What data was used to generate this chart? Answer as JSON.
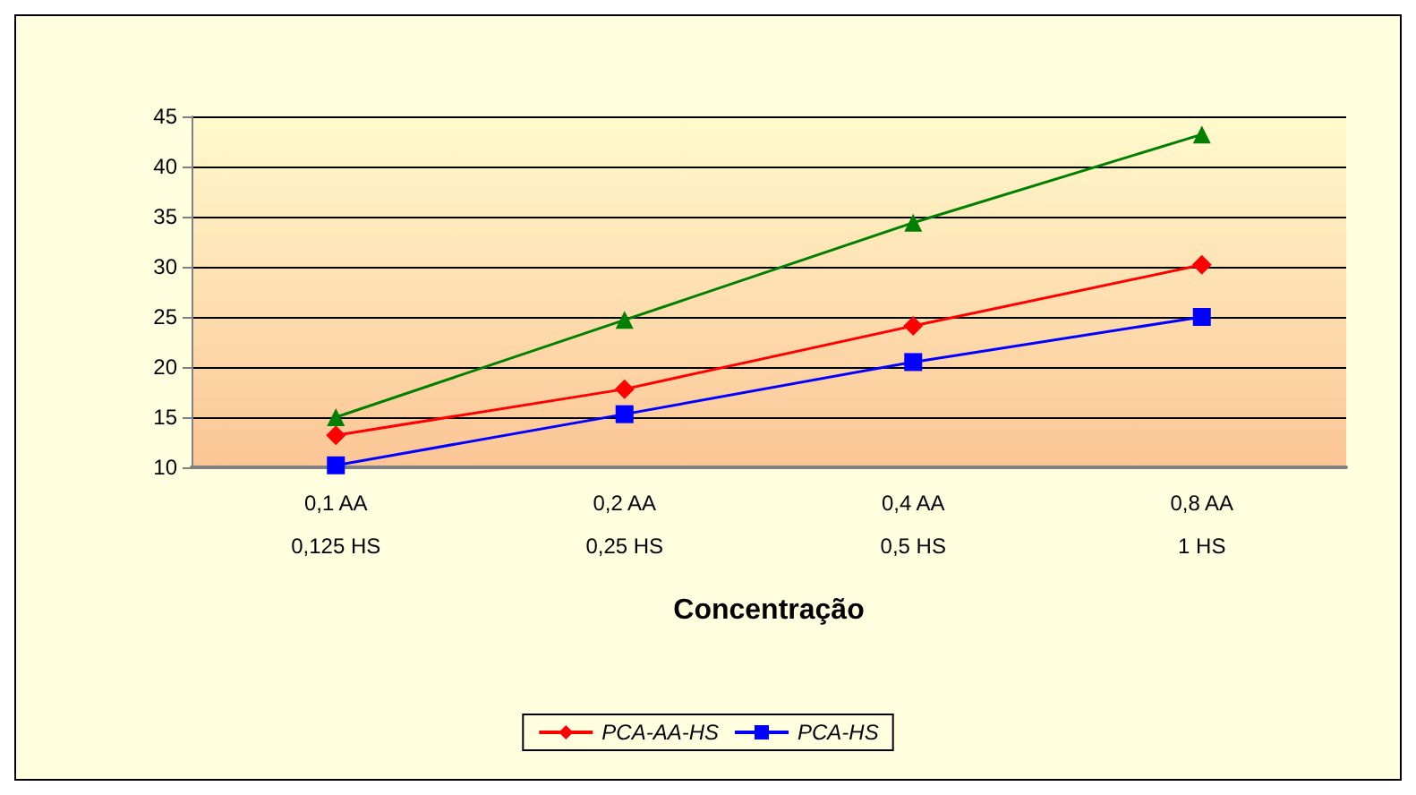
{
  "chart_data": {
    "type": "line",
    "xlabel": "Concentração",
    "categories": [
      "0,1 AA\n\n0,125 HS",
      "0,2 AA\n\n0,25 HS",
      "0,4 AA\n\n0,5 HS",
      "0,8 AA\n\n1 HS"
    ],
    "series": [
      {
        "name": "PCA-AA-HS",
        "color": "#ff0000",
        "marker": "diamond",
        "values": [
          13.2,
          17.8,
          24.1,
          30.2
        ]
      },
      {
        "name": "PCA-HS",
        "color": "#0000ff",
        "marker": "square",
        "values": [
          10.2,
          15.3,
          20.5,
          25.0
        ]
      },
      {
        "color": "#008000",
        "marker": "triangle",
        "values": [
          15.0,
          24.7,
          34.4,
          43.2
        ]
      }
    ],
    "ylim": [
      10,
      45
    ],
    "yticks": [
      10,
      15,
      20,
      25,
      30,
      35,
      40,
      45
    ],
    "grid": "y",
    "legend": "bottom"
  }
}
